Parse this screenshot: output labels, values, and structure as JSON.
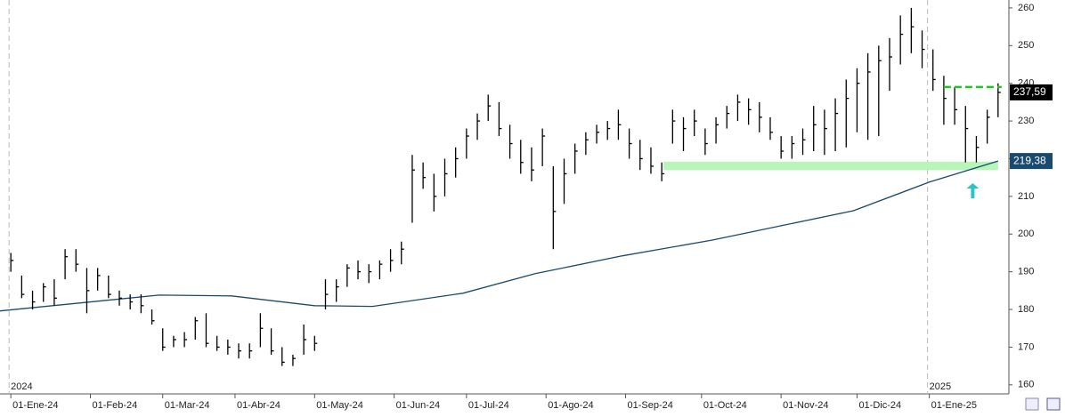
{
  "chart_data": {
    "type": "ohlc",
    "color": "#000000",
    "x": [
      0,
      3,
      6,
      9,
      12,
      15,
      18,
      21,
      24,
      27,
      30,
      33,
      36,
      39,
      42,
      45,
      48,
      51,
      54,
      57,
      60,
      63,
      66,
      69,
      72,
      75,
      78,
      81,
      84,
      87,
      90,
      93,
      96,
      99,
      102,
      105,
      108,
      111,
      114,
      117,
      120,
      123,
      126,
      129,
      132,
      135,
      138,
      141,
      144,
      147,
      150,
      153,
      156,
      159,
      162,
      165,
      168,
      171,
      174,
      177,
      180,
      183,
      186,
      189,
      192,
      195,
      198,
      201,
      204,
      207,
      210,
      213,
      216,
      219,
      222,
      225,
      228,
      231,
      234,
      237,
      240,
      243,
      246,
      249,
      252,
      255,
      258,
      261,
      264,
      267,
      270,
      273
    ],
    "high": [
      195,
      189,
      185,
      187,
      188,
      196,
      196,
      191,
      191,
      189,
      185,
      184,
      184,
      180,
      175,
      173,
      174,
      178,
      179,
      173,
      172,
      171,
      171,
      179,
      175,
      170,
      168,
      176,
      173,
      188,
      188,
      192,
      193,
      192,
      193,
      196,
      198,
      221,
      219,
      216,
      220,
      223,
      228,
      232,
      237,
      235,
      229,
      225,
      223,
      228,
      218,
      220,
      224,
      227,
      229,
      230,
      233,
      228,
      225,
      223,
      219,
      233,
      231,
      233,
      228,
      231,
      234,
      237,
      236,
      235,
      231,
      226,
      226,
      228,
      234,
      233,
      236,
      241,
      244,
      248,
      250,
      252,
      258,
      260,
      254,
      249,
      242,
      239,
      234,
      226,
      233,
      240
    ],
    "low": [
      190,
      183,
      180,
      182,
      181,
      188,
      190,
      179,
      185,
      183,
      181,
      180,
      179,
      176,
      169,
      170,
      170,
      172,
      170,
      169,
      168,
      167,
      167,
      170,
      168,
      165,
      165,
      168,
      169,
      180,
      182,
      186,
      188,
      187,
      188,
      190,
      192,
      203,
      212,
      206,
      210,
      215,
      220,
      225,
      230,
      226,
      220,
      216,
      214,
      218,
      196,
      208,
      216,
      221,
      224,
      225,
      225,
      220,
      217,
      216,
      214,
      224,
      222,
      226,
      221,
      224,
      228,
      230,
      229,
      227,
      225,
      220,
      220,
      221,
      222,
      221,
      222,
      223,
      227,
      225,
      226,
      238,
      245,
      248,
      244,
      238,
      229,
      229,
      219,
      219,
      224,
      231
    ],
    "close": [
      193,
      184,
      182,
      186,
      183,
      194,
      192,
      185,
      189,
      184,
      183,
      182,
      181,
      177,
      170,
      172,
      172,
      177,
      171,
      170,
      170,
      169,
      169,
      175,
      169,
      166,
      167,
      172,
      171,
      184,
      186,
      191,
      190,
      190,
      192,
      193,
      196,
      217,
      215,
      210,
      216,
      220,
      226,
      230,
      234,
      228,
      224,
      219,
      217,
      226,
      206,
      216,
      222,
      225,
      227,
      228,
      229,
      224,
      220,
      218,
      216,
      230,
      228,
      230,
      224,
      229,
      232,
      235,
      233,
      231,
      227,
      222,
      224,
      225,
      229,
      228,
      232,
      236,
      240,
      243,
      246,
      247,
      253,
      255,
      249,
      241,
      236,
      233,
      228,
      223,
      231,
      237.59
    ],
    "ma": {
      "color": "#1a4a6e",
      "x": [
        -3,
        41,
        61,
        84,
        100,
        125,
        145,
        169,
        194,
        213,
        233,
        254,
        273
      ],
      "values": [
        179.6,
        183.8,
        183.6,
        181,
        180.8,
        184.3,
        189.5,
        194.2,
        198.4,
        202.2,
        206.2,
        213.8,
        219.38
      ]
    },
    "support_band": {
      "color": "#b8f5b8",
      "x": [
        180.5,
        273
      ],
      "y": [
        217,
        219.2
      ]
    },
    "resistance_line": {
      "color": "#22c422",
      "x": [
        258,
        274
      ],
      "y": 239
    },
    "arrow": {
      "color": "#2bc4c4",
      "x": 266,
      "y": [
        209.5,
        213.5
      ]
    },
    "price_tags": [
      {
        "value": 237.59,
        "label": "237,59",
        "color": "#000000"
      },
      {
        "value": 219.38,
        "label": "219,38",
        "color": "#1a4a6e"
      }
    ],
    "year_labels": [
      {
        "value": 0,
        "label": "2024"
      },
      {
        "value": 254,
        "label": "2025"
      }
    ],
    "xlim": [
      -3,
      276
    ],
    "ylim": [
      157.6,
      262.1
    ],
    "xticks": [
      {
        "value": 0,
        "label": "01-Ene-24"
      },
      {
        "value": 22,
        "label": "01-Feb-24"
      },
      {
        "value": 42,
        "label": "01-Mar-24"
      },
      {
        "value": 62,
        "label": "01-Abr-24"
      },
      {
        "value": 84,
        "label": "01-May-24"
      },
      {
        "value": 106,
        "label": "01-Jun-24"
      },
      {
        "value": 126,
        "label": "01-Jul-24"
      },
      {
        "value": 148,
        "label": "01-Ago-24"
      },
      {
        "value": 170,
        "label": "01-Sep-24"
      },
      {
        "value": 191,
        "label": "01-Oct-24"
      },
      {
        "value": 213,
        "label": "01-Nov-24"
      },
      {
        "value": 234,
        "label": "01-Dic-24"
      },
      {
        "value": 254,
        "label": "01-Ene-25"
      }
    ],
    "yticks": [
      160,
      170,
      180,
      190,
      200,
      210,
      220,
      230,
      240,
      250,
      260
    ]
  }
}
